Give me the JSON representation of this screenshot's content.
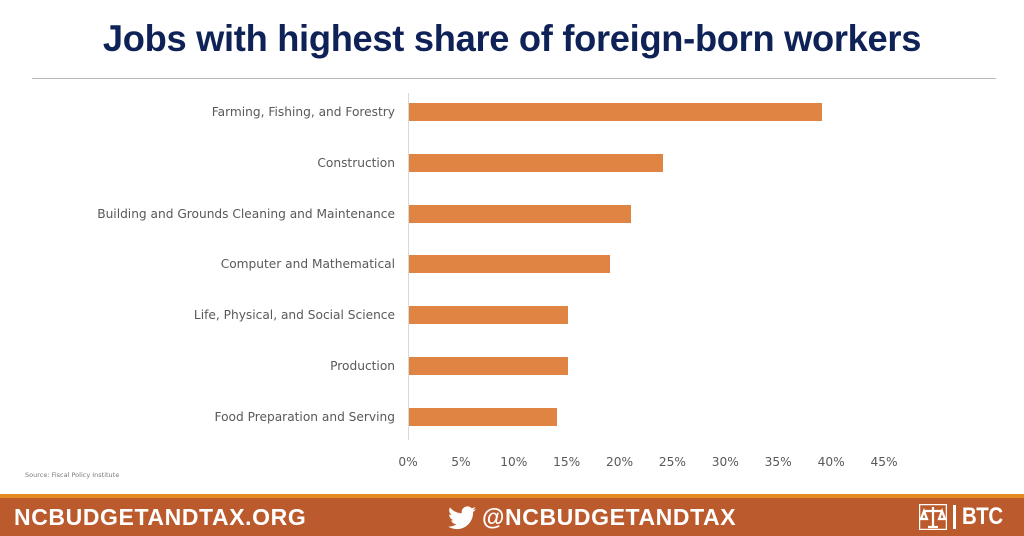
{
  "title": "Jobs with highest share of foreign-born workers",
  "source": "Source: Fiscal Policy Institute",
  "footer": {
    "website": "NCBUDGETANDTAX.ORG",
    "twitter_handle": "@NCBUDGETANDTAX",
    "logo_text": "BTC",
    "twitter_icon": "twitter-bird-icon",
    "logo_icon": "scales-of-justice-icon"
  },
  "colors": {
    "title": "#0f2258",
    "bar": "#e08444",
    "footer_bg": "#bb5a2c",
    "footer_stripe": "#e58a22"
  },
  "chart_data": {
    "type": "bar",
    "orientation": "horizontal",
    "title": "Jobs with highest share of foreign-born workers",
    "xlabel": "",
    "ylabel": "",
    "categories": [
      "Farming, Fishing, and Forestry",
      "Construction",
      "Building and Grounds Cleaning and Maintenance",
      "Computer and Mathematical",
      "Life, Physical, and Social Science",
      "Production",
      "Food Preparation and Serving"
    ],
    "values": [
      39,
      24,
      21,
      19,
      15,
      15,
      14
    ],
    "value_unit": "%",
    "xlim": [
      0,
      45
    ],
    "x_ticks": [
      "0%",
      "5%",
      "10%",
      "15%",
      "20%",
      "25%",
      "30%",
      "35%",
      "40%",
      "45%"
    ],
    "grid": false,
    "legend": null,
    "source": "Source: Fiscal Policy Institute"
  }
}
